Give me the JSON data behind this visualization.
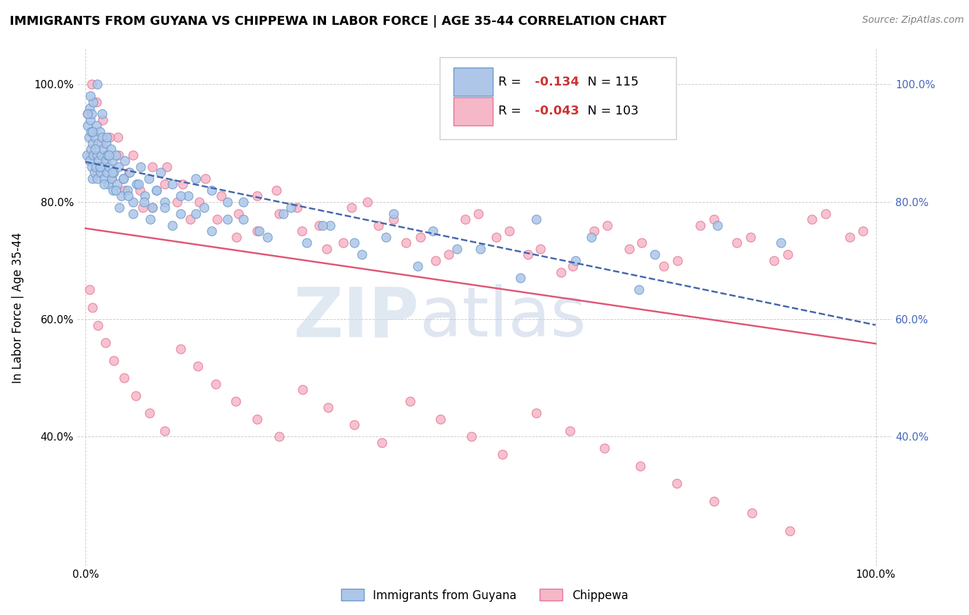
{
  "title": "IMMIGRANTS FROM GUYANA VS CHIPPEWA IN LABOR FORCE | AGE 35-44 CORRELATION CHART",
  "source": "Source: ZipAtlas.com",
  "ylabel": "In Labor Force | Age 35-44",
  "legend_labels": [
    "Immigrants from Guyana",
    "Chippewa"
  ],
  "blue_R": -0.134,
  "blue_N": 115,
  "pink_R": -0.043,
  "pink_N": 103,
  "blue_color": "#aec6e8",
  "pink_color": "#f5b8c8",
  "blue_edge_color": "#6699cc",
  "pink_edge_color": "#e87090",
  "blue_line_color": "#4466aa",
  "pink_line_color": "#e05575",
  "watermark_zip": "ZIP",
  "watermark_atlas": "atlas",
  "right_tick_color": "#4466bb",
  "xlim": [
    -0.01,
    1.02
  ],
  "ylim": [
    0.18,
    1.06
  ],
  "xticks": [
    0.0,
    1.0
  ],
  "xticklabels": [
    "0.0%",
    "100.0%"
  ],
  "yticks": [
    0.4,
    0.6,
    0.8,
    1.0
  ],
  "yticklabels": [
    "40.0%",
    "60.0%",
    "80.0%",
    "100.0%"
  ],
  "blue_scatter_x": [
    0.002,
    0.003,
    0.004,
    0.005,
    0.005,
    0.006,
    0.007,
    0.007,
    0.008,
    0.008,
    0.009,
    0.009,
    0.01,
    0.01,
    0.011,
    0.012,
    0.013,
    0.014,
    0.015,
    0.015,
    0.016,
    0.017,
    0.018,
    0.019,
    0.02,
    0.021,
    0.022,
    0.023,
    0.024,
    0.025,
    0.026,
    0.027,
    0.028,
    0.029,
    0.03,
    0.032,
    0.033,
    0.034,
    0.035,
    0.036,
    0.038,
    0.04,
    0.042,
    0.045,
    0.048,
    0.05,
    0.053,
    0.056,
    0.06,
    0.065,
    0.07,
    0.075,
    0.08,
    0.085,
    0.09,
    0.095,
    0.1,
    0.11,
    0.12,
    0.13,
    0.14,
    0.15,
    0.16,
    0.18,
    0.2,
    0.22,
    0.25,
    0.28,
    0.31,
    0.35,
    0.38,
    0.42,
    0.47,
    0.55,
    0.62,
    0.7,
    0.003,
    0.006,
    0.009,
    0.012,
    0.015,
    0.018,
    0.021,
    0.024,
    0.027,
    0.03,
    0.034,
    0.038,
    0.043,
    0.048,
    0.054,
    0.06,
    0.067,
    0.074,
    0.082,
    0.09,
    0.1,
    0.11,
    0.12,
    0.14,
    0.16,
    0.18,
    0.2,
    0.23,
    0.26,
    0.3,
    0.34,
    0.39,
    0.44,
    0.5,
    0.57,
    0.64,
    0.72,
    0.8,
    0.88
  ],
  "blue_scatter_y": [
    0.88,
    0.93,
    0.91,
    0.96,
    0.87,
    0.94,
    0.89,
    0.92,
    0.86,
    0.95,
    0.9,
    0.84,
    0.88,
    0.97,
    0.85,
    0.91,
    0.86,
    0.93,
    0.88,
    0.84,
    0.9,
    0.87,
    0.92,
    0.85,
    0.88,
    0.91,
    0.86,
    0.89,
    0.84,
    0.87,
    0.9,
    0.85,
    0.88,
    0.83,
    0.86,
    0.89,
    0.84,
    0.87,
    0.82,
    0.85,
    0.88,
    0.83,
    0.86,
    0.81,
    0.84,
    0.87,
    0.82,
    0.85,
    0.8,
    0.83,
    0.86,
    0.81,
    0.84,
    0.79,
    0.82,
    0.85,
    0.8,
    0.83,
    0.78,
    0.81,
    0.84,
    0.79,
    0.82,
    0.77,
    0.8,
    0.75,
    0.78,
    0.73,
    0.76,
    0.71,
    0.74,
    0.69,
    0.72,
    0.67,
    0.7,
    0.65,
    0.95,
    0.98,
    0.92,
    0.89,
    1.0,
    0.86,
    0.95,
    0.83,
    0.91,
    0.88,
    0.85,
    0.82,
    0.79,
    0.84,
    0.81,
    0.78,
    0.83,
    0.8,
    0.77,
    0.82,
    0.79,
    0.76,
    0.81,
    0.78,
    0.75,
    0.8,
    0.77,
    0.74,
    0.79,
    0.76,
    0.73,
    0.78,
    0.75,
    0.72,
    0.77,
    0.74,
    0.71,
    0.76,
    0.73
  ],
  "pink_scatter_x": [
    0.003,
    0.006,
    0.01,
    0.015,
    0.02,
    0.026,
    0.033,
    0.041,
    0.05,
    0.06,
    0.072,
    0.085,
    0.1,
    0.116,
    0.133,
    0.152,
    0.172,
    0.194,
    0.217,
    0.242,
    0.268,
    0.296,
    0.326,
    0.357,
    0.39,
    0.424,
    0.46,
    0.497,
    0.536,
    0.576,
    0.617,
    0.66,
    0.704,
    0.749,
    0.795,
    0.842,
    0.889,
    0.937,
    0.984,
    0.008,
    0.014,
    0.022,
    0.031,
    0.042,
    0.055,
    0.069,
    0.085,
    0.103,
    0.123,
    0.144,
    0.167,
    0.191,
    0.217,
    0.245,
    0.274,
    0.305,
    0.337,
    0.371,
    0.406,
    0.443,
    0.481,
    0.52,
    0.56,
    0.602,
    0.644,
    0.688,
    0.732,
    0.778,
    0.824,
    0.871,
    0.919,
    0.967,
    0.005,
    0.009,
    0.016,
    0.025,
    0.036,
    0.049,
    0.064,
    0.081,
    0.1,
    0.12,
    0.142,
    0.165,
    0.19,
    0.217,
    0.245,
    0.275,
    0.307,
    0.34,
    0.375,
    0.411,
    0.449,
    0.488,
    0.528,
    0.57,
    0.613,
    0.657,
    0.702,
    0.748,
    0.795,
    0.843,
    0.891
  ],
  "pink_scatter_y": [
    0.95,
    0.88,
    0.92,
    0.85,
    0.9,
    0.87,
    0.84,
    0.91,
    0.82,
    0.88,
    0.79,
    0.86,
    0.83,
    0.8,
    0.77,
    0.84,
    0.81,
    0.78,
    0.75,
    0.82,
    0.79,
    0.76,
    0.73,
    0.8,
    0.77,
    0.74,
    0.71,
    0.78,
    0.75,
    0.72,
    0.69,
    0.76,
    0.73,
    0.7,
    0.77,
    0.74,
    0.71,
    0.78,
    0.75,
    1.0,
    0.97,
    0.94,
    0.91,
    0.88,
    0.85,
    0.82,
    0.79,
    0.86,
    0.83,
    0.8,
    0.77,
    0.74,
    0.81,
    0.78,
    0.75,
    0.72,
    0.79,
    0.76,
    0.73,
    0.7,
    0.77,
    0.74,
    0.71,
    0.68,
    0.75,
    0.72,
    0.69,
    0.76,
    0.73,
    0.7,
    0.77,
    0.74,
    0.65,
    0.62,
    0.59,
    0.56,
    0.53,
    0.5,
    0.47,
    0.44,
    0.41,
    0.55,
    0.52,
    0.49,
    0.46,
    0.43,
    0.4,
    0.48,
    0.45,
    0.42,
    0.39,
    0.46,
    0.43,
    0.4,
    0.37,
    0.44,
    0.41,
    0.38,
    0.35,
    0.32,
    0.29,
    0.27,
    0.24
  ]
}
